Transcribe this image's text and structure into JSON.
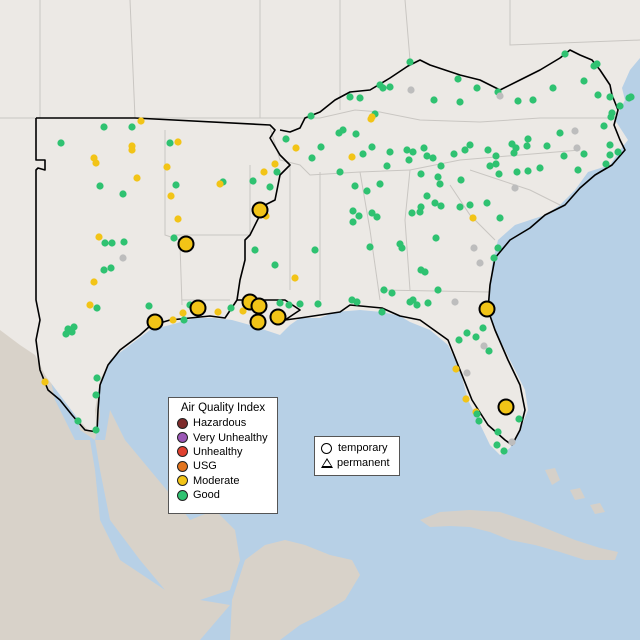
{
  "legend": {
    "title": "Air Quality Index",
    "categories": [
      {
        "label": "Hazardous",
        "color": "#7e2b2b"
      },
      {
        "label": "Very Unhealthy",
        "color": "#9b57b6"
      },
      {
        "label": "Unhealthy",
        "color": "#e0402f"
      },
      {
        "label": "USG",
        "color": "#e2741e"
      },
      {
        "label": "Moderate",
        "color": "#f2c417"
      },
      {
        "label": "Good",
        "color": "#2fc271"
      }
    ]
  },
  "monitor_types": {
    "temporary": "temporary",
    "permanent": "permanent"
  },
  "colors": {
    "ocean": "#b7d0e6",
    "land": "#ece9e5",
    "mexico_land": "#d5cfc6",
    "cuba": "#d7d2cb",
    "no_data": "#bdbdbd"
  }
}
